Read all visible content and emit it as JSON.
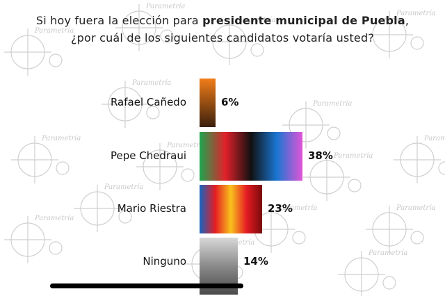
{
  "title": {
    "line1_prefix": "Si hoy fuera la elección para ",
    "line1_bold": "presidente municipal de Puebla",
    "line1_suffix": ",",
    "line2": "¿por cuál de los siguientes candidatos votaría usted?"
  },
  "watermark_text": "Parametría",
  "chart_data": {
    "type": "bar",
    "orientation": "horizontal",
    "categories": [
      "Rafael Cañedo",
      "Pepe Chedraui",
      "Mario Riestra",
      "Ninguno"
    ],
    "values": [
      6,
      38,
      23,
      14
    ],
    "value_labels": [
      "6%",
      "38%",
      "23%",
      "14%"
    ],
    "unit": "%",
    "xlim": [
      0,
      38
    ],
    "grid": false,
    "legend": "none",
    "bar_colors": [
      [
        "#f07d1a",
        "#3a1f0c"
      ],
      [
        "#1ca64f",
        "#e2202a",
        "#111111",
        "#1976d2",
        "#e254d8"
      ],
      [
        "#1565c0",
        "#e51c23",
        "#f9c21b",
        "#e51c23",
        "#7a0a0a"
      ],
      [
        "#d8d8d8",
        "#8a8a8a",
        "#4a4a4a"
      ]
    ]
  }
}
